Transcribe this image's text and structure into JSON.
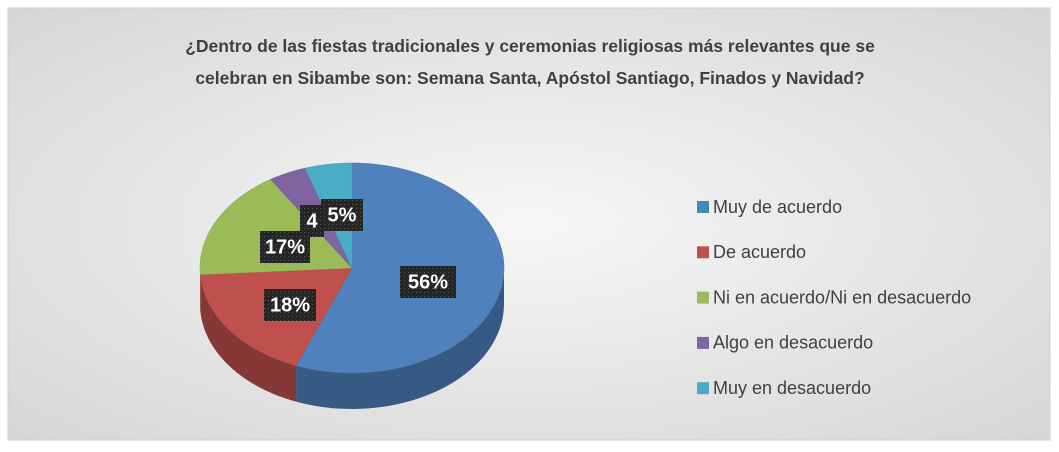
{
  "chart_data": {
    "type": "pie",
    "title": "¿Dentro de las fiestas tradicionales y ceremonias religiosas más relevantes que se celebran en Sibambe son: Semana Santa, Apóstol Santiago, Finados y Navidad?",
    "categories": [
      "Muy de acuerdo",
      "De acuerdo",
      "Ni en acuerdo/Ni en desacuerdo",
      "Algo en desacuerdo",
      "Muy en desacuerdo"
    ],
    "values": [
      56,
      18,
      17,
      4,
      5
    ],
    "value_labels": [
      "56%",
      "18%",
      "17%",
      "4",
      "5%"
    ],
    "colors": [
      "#4f81bd",
      "#c0504d",
      "#9bbb59",
      "#8064a2",
      "#4bacc6"
    ]
  }
}
